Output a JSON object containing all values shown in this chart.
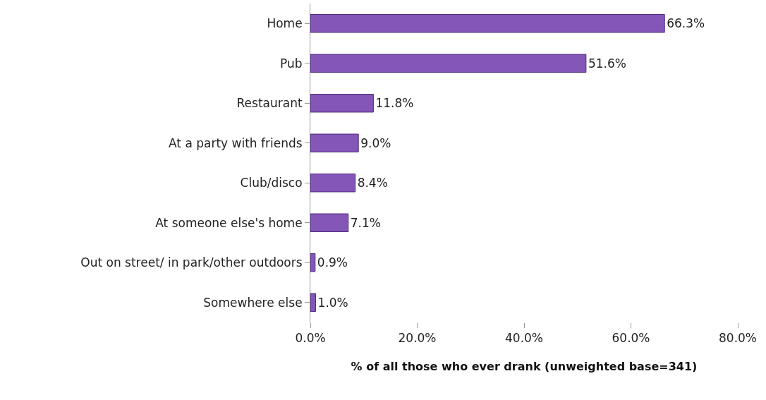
{
  "chart_data": {
    "type": "bar",
    "orientation": "horizontal",
    "xlabel": "% of all those who ever drank (unweighted base=341)",
    "categories": [
      "Home",
      "Pub",
      "Restaurant",
      "At a party with friends",
      "Club/disco",
      "At someone else's home",
      "Out on street/ in park/other outdoors",
      "Somewhere else"
    ],
    "values": [
      66.3,
      51.6,
      11.8,
      9.0,
      8.4,
      7.1,
      0.9,
      1.0
    ],
    "value_labels": [
      "66.3%",
      "51.6%",
      "11.8%",
      "9.0%",
      "8.4%",
      "7.1%",
      "0.9%",
      "1.0%"
    ],
    "color": "#8356b8",
    "xlim": [
      0,
      80
    ],
    "xticks": [
      {
        "value": 0,
        "label": "0.0%"
      },
      {
        "value": 20,
        "label": "20.0%"
      },
      {
        "value": 40,
        "label": "40.0%"
      },
      {
        "value": 60,
        "label": "60.0%"
      },
      {
        "value": 80,
        "label": "80.0%"
      }
    ],
    "legend": false
  }
}
